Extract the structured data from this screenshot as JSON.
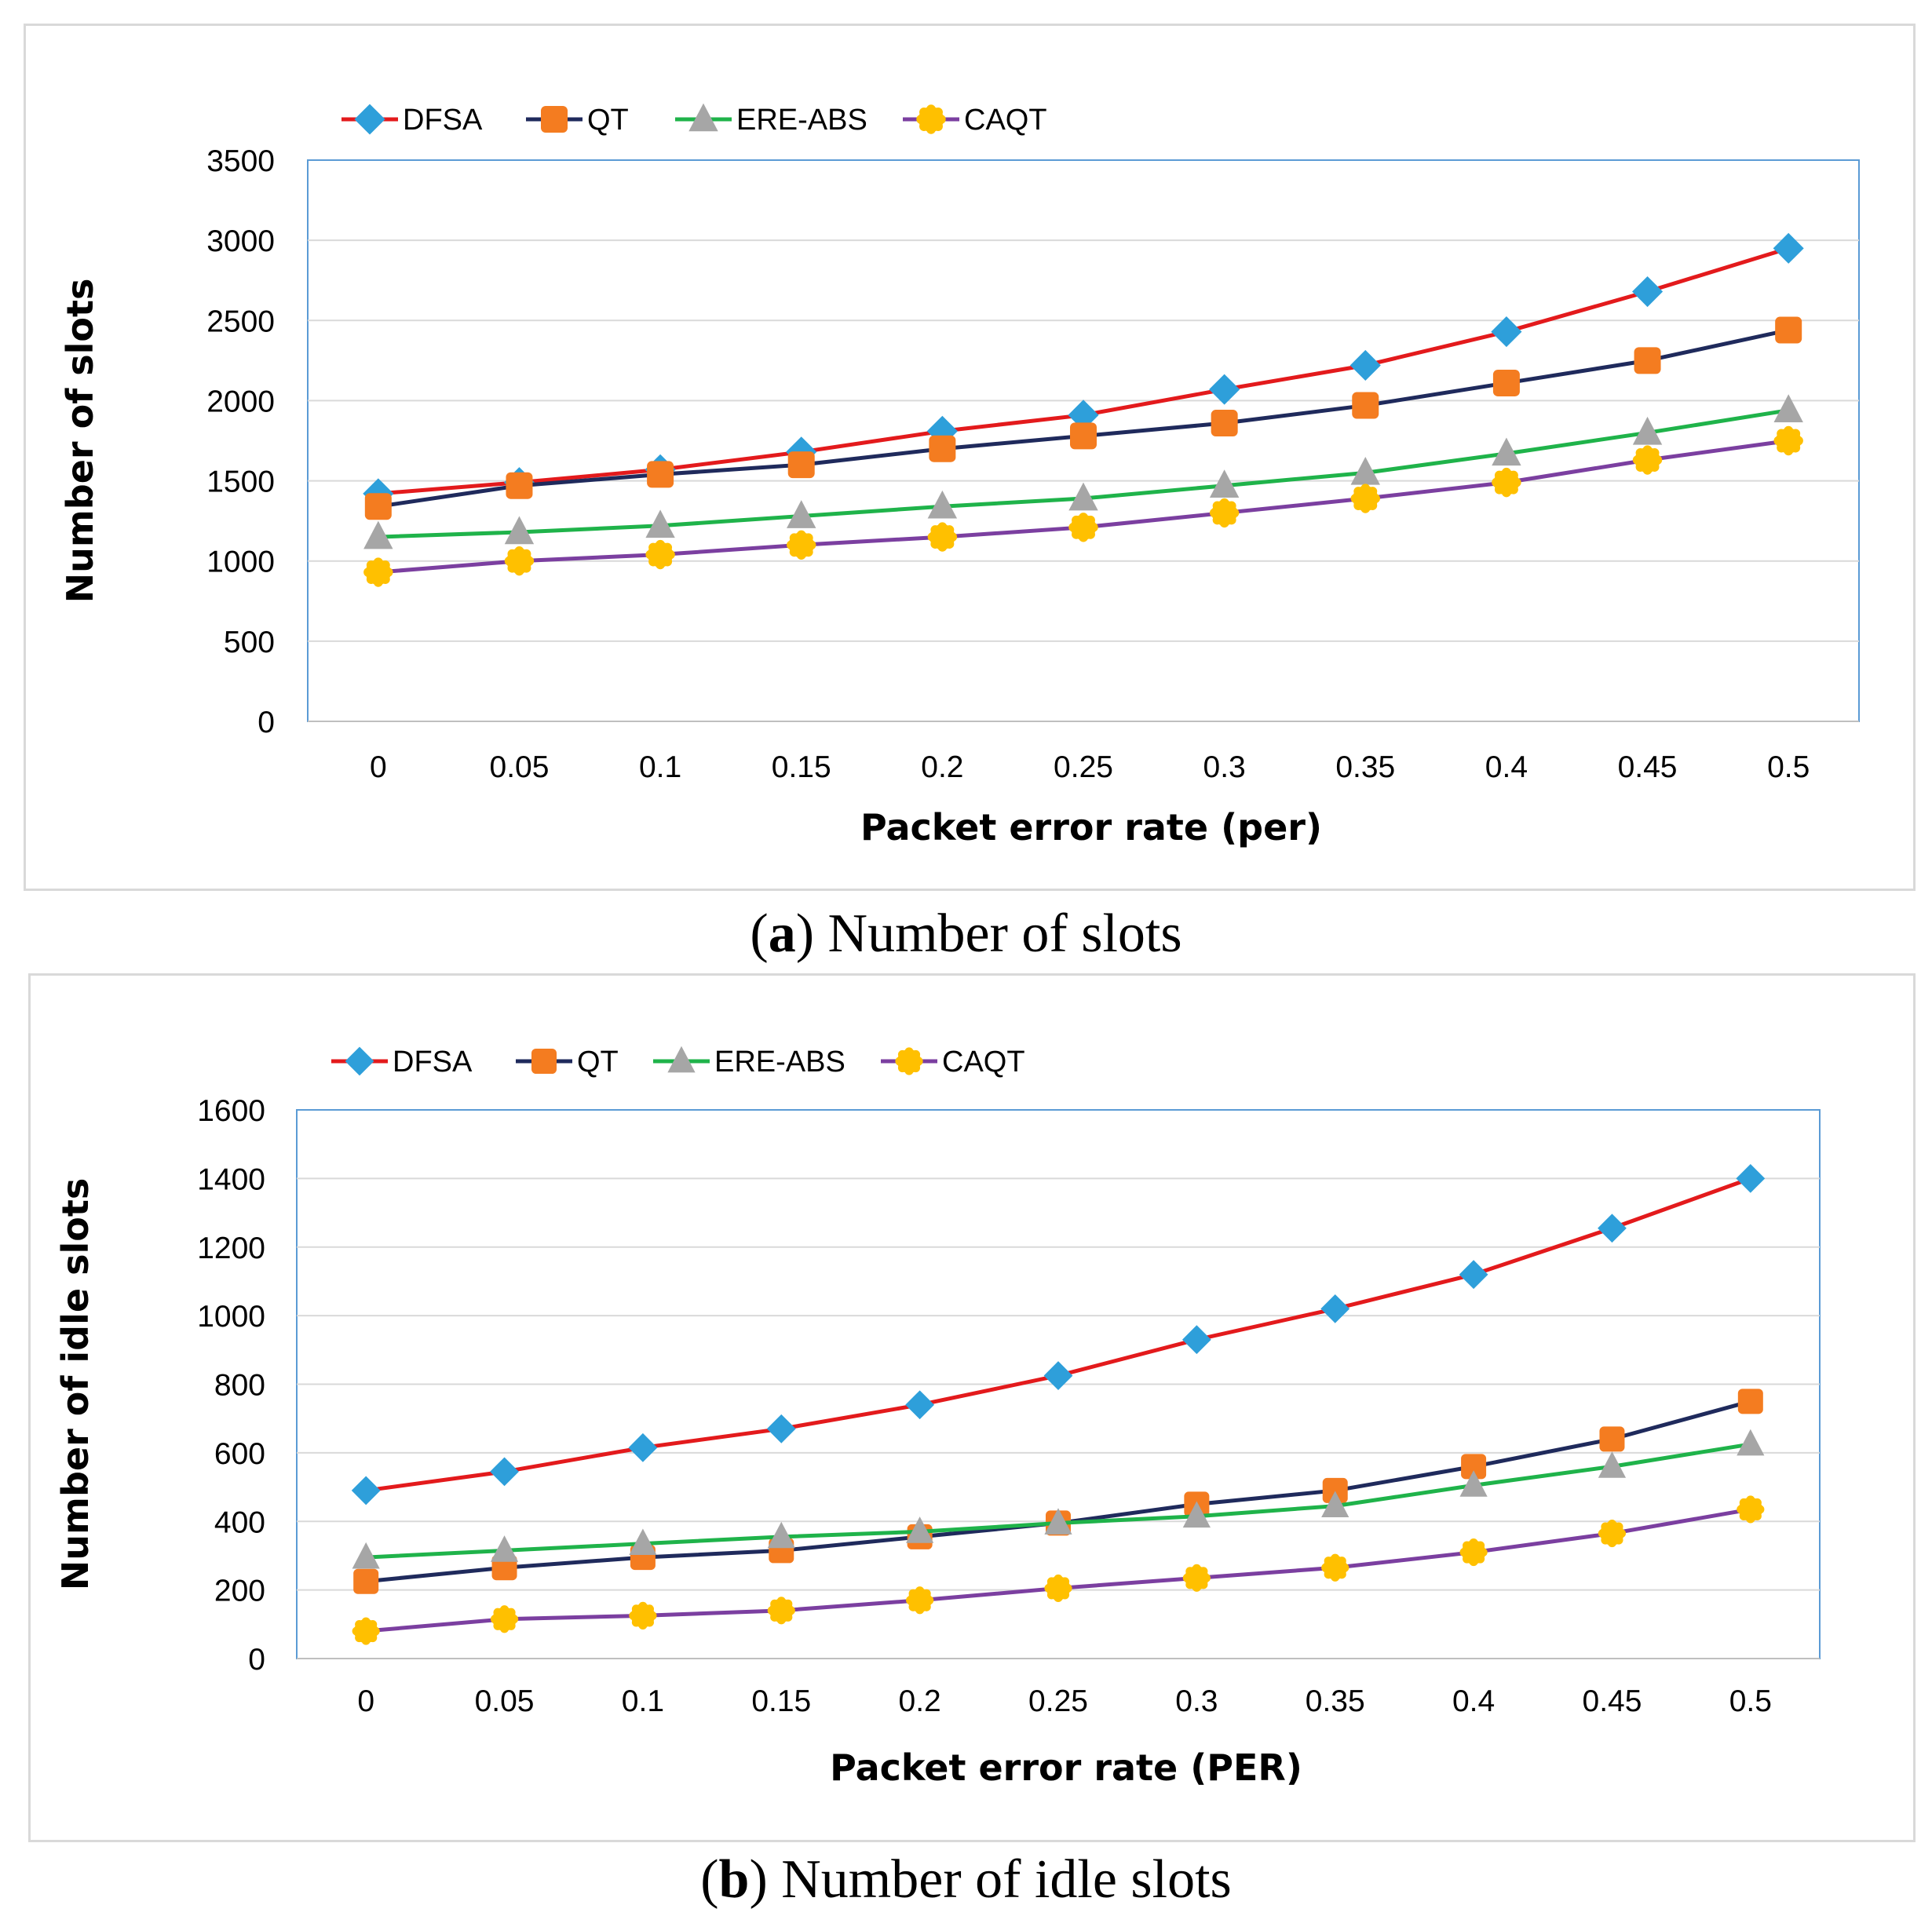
{
  "chart_data": [
    {
      "id": "a",
      "type": "line",
      "caption_letter": "a",
      "caption_text": "Number of slots",
      "xlabel": "Packet error rate (per)",
      "ylabel": "Number of slots",
      "categories": [
        "0",
        "0.05",
        "0.1",
        "0.15",
        "0.2",
        "0.25",
        "0.3",
        "0.35",
        "0.4",
        "0.45",
        "0.5"
      ],
      "ylim": [
        0,
        3500
      ],
      "yticks": [
        0,
        500,
        1000,
        1500,
        2000,
        2500,
        3000,
        3500
      ],
      "legend_position": "top-left",
      "grid": true,
      "series": [
        {
          "name": "DFSA",
          "values": [
            1420,
            1490,
            1570,
            1680,
            1810,
            1910,
            2070,
            2220,
            2430,
            2680,
            2950
          ]
        },
        {
          "name": "QT",
          "values": [
            1340,
            1470,
            1540,
            1600,
            1700,
            1780,
            1860,
            1970,
            2110,
            2250,
            2440
          ]
        },
        {
          "name": "ERE-ABS",
          "values": [
            1150,
            1180,
            1220,
            1280,
            1340,
            1390,
            1470,
            1550,
            1670,
            1800,
            1940
          ]
        },
        {
          "name": "CAQT",
          "values": [
            930,
            1000,
            1040,
            1100,
            1150,
            1210,
            1300,
            1390,
            1490,
            1630,
            1750
          ]
        }
      ]
    },
    {
      "id": "b",
      "type": "line",
      "caption_letter": "b",
      "caption_text": "Number of idle slots",
      "xlabel": "Packet error rate (PER)",
      "ylabel": "Number of idle slots",
      "categories": [
        "0",
        "0.05",
        "0.1",
        "0.15",
        "0.2",
        "0.25",
        "0.3",
        "0.35",
        "0.4",
        "0.45",
        "0.5"
      ],
      "ylim": [
        0,
        1600
      ],
      "yticks": [
        0,
        200,
        400,
        600,
        800,
        1000,
        1200,
        1400,
        1600
      ],
      "legend_position": "top-left",
      "grid": true,
      "series": [
        {
          "name": "DFSA",
          "values": [
            490,
            545,
            615,
            670,
            740,
            825,
            930,
            1020,
            1120,
            1255,
            1400
          ]
        },
        {
          "name": "QT",
          "values": [
            225,
            265,
            295,
            315,
            355,
            395,
            450,
            490,
            560,
            640,
            750
          ]
        },
        {
          "name": "ERE-ABS",
          "values": [
            295,
            315,
            335,
            355,
            370,
            395,
            415,
            445,
            505,
            560,
            625
          ]
        },
        {
          "name": "CAQT",
          "values": [
            80,
            115,
            125,
            140,
            170,
            205,
            235,
            265,
            310,
            365,
            435
          ]
        }
      ]
    }
  ],
  "styles": {
    "DFSA": {
      "line": "#e31a1c",
      "marker": "#2e9fda",
      "shape": "diamond"
    },
    "QT": {
      "line": "#1f2a5c",
      "marker": "#f47c20",
      "shape": "square"
    },
    "ERE-ABS": {
      "line": "#1fb34a",
      "marker": "#a6a6a6",
      "shape": "triangle"
    },
    "CAQT": {
      "line": "#7b3fa0",
      "marker": "#ffc000",
      "shape": "circle"
    }
  }
}
